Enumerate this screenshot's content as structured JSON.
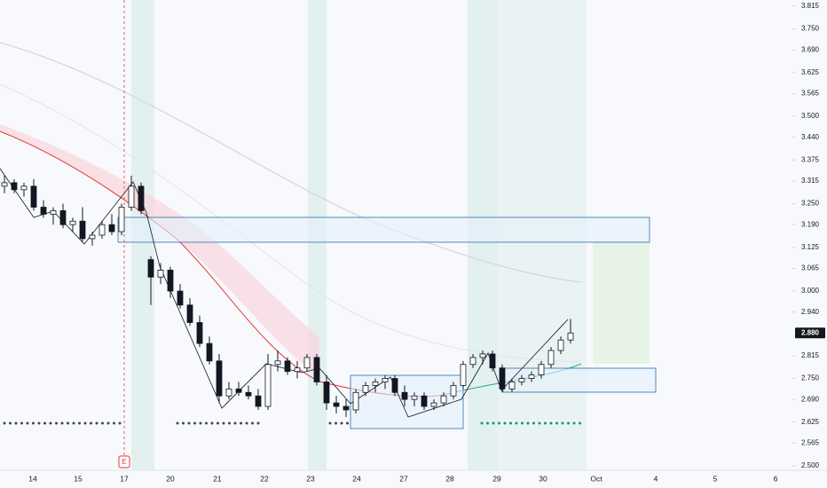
{
  "chart_data": {
    "type": "candlestick",
    "open": [
      3.3,
      3.31,
      3.29,
      3.3,
      3.24,
      3.22,
      3.23,
      3.19,
      3.2,
      3.15,
      3.16,
      3.19,
      3.17,
      3.24,
      3.3,
      3.09,
      3.04,
      3.06,
      3.0,
      2.96,
      2.91,
      2.85,
      2.8,
      2.7,
      2.72,
      2.71,
      2.7,
      2.67,
      2.79,
      2.8,
      2.77,
      2.78,
      2.81,
      2.74,
      2.68,
      2.67,
      2.66,
      2.71,
      2.73,
      2.74,
      2.75,
      2.71,
      2.69,
      2.7,
      2.67,
      2.68,
      2.7,
      2.73,
      2.79,
      2.81,
      2.82,
      2.78,
      2.72,
      2.74,
      2.75,
      2.76,
      2.79,
      2.83,
      2.86
    ],
    "high": [
      3.33,
      3.32,
      3.31,
      3.32,
      3.26,
      3.24,
      3.25,
      3.21,
      3.24,
      3.17,
      3.2,
      3.22,
      3.25,
      3.33,
      3.31,
      3.1,
      3.08,
      3.07,
      3.02,
      2.98,
      2.93,
      2.87,
      2.82,
      2.74,
      2.74,
      2.73,
      2.72,
      2.82,
      2.83,
      2.81,
      2.8,
      2.82,
      2.82,
      2.76,
      2.7,
      2.69,
      2.72,
      2.74,
      2.75,
      2.76,
      2.76,
      2.73,
      2.71,
      2.71,
      2.69,
      2.71,
      2.74,
      2.8,
      2.82,
      2.83,
      2.83,
      2.79,
      2.75,
      2.76,
      2.77,
      2.8,
      2.84,
      2.87,
      2.92
    ],
    "low": [
      3.28,
      3.28,
      3.27,
      3.23,
      3.21,
      3.19,
      3.18,
      3.17,
      3.14,
      3.13,
      3.15,
      3.16,
      3.16,
      3.23,
      3.22,
      2.96,
      3.02,
      2.98,
      2.95,
      2.9,
      2.84,
      2.79,
      2.68,
      2.69,
      2.7,
      2.69,
      2.66,
      2.66,
      2.77,
      2.76,
      2.75,
      2.77,
      2.73,
      2.66,
      2.65,
      2.64,
      2.65,
      2.7,
      2.71,
      2.72,
      2.7,
      2.67,
      2.67,
      2.66,
      2.66,
      2.67,
      2.69,
      2.72,
      2.78,
      2.79,
      2.77,
      2.71,
      2.71,
      2.73,
      2.74,
      2.75,
      2.78,
      2.82,
      2.85
    ],
    "close": [
      3.31,
      3.29,
      3.3,
      3.24,
      3.22,
      3.23,
      3.19,
      3.2,
      3.15,
      3.16,
      3.19,
      3.17,
      3.24,
      3.3,
      3.23,
      3.04,
      3.06,
      3.0,
      2.96,
      2.91,
      2.85,
      2.8,
      2.7,
      2.72,
      2.71,
      2.7,
      2.67,
      2.79,
      2.8,
      2.77,
      2.78,
      2.81,
      2.74,
      2.68,
      2.67,
      2.66,
      2.71,
      2.73,
      2.74,
      2.75,
      2.71,
      2.69,
      2.7,
      2.67,
      2.68,
      2.7,
      2.73,
      2.79,
      2.81,
      2.82,
      2.78,
      2.72,
      2.74,
      2.75,
      2.76,
      2.79,
      2.83,
      2.86,
      2.88
    ],
    "up_color": "#ffffff",
    "down_color": "#131722",
    "ylim": [
      2.5,
      3.815
    ],
    "yticks": [
      3.815,
      {
        "value": 3.75,
        "label": "3.750"
      },
      {
        "value": 3.69,
        "label": "3.690"
      },
      3.625,
      3.565,
      {
        "value": 3.5,
        "label": "3.500"
      },
      {
        "value": 3.44,
        "label": "3.440"
      },
      3.375,
      3.315,
      {
        "value": 3.25,
        "label": "3.250"
      },
      {
        "value": 3.19,
        "label": "3.190"
      },
      3.125,
      3.065,
      {
        "value": 3,
        "label": "3.000"
      },
      {
        "value": 2.94,
        "label": "2.940"
      },
      2.815,
      {
        "value": 2.75,
        "label": "2.750"
      },
      {
        "value": 2.69,
        "label": "2.690"
      },
      2.625,
      2.565,
      {
        "value": 2.5,
        "label": "2.500"
      }
    ],
    "last_price": {
      "value": 2.88,
      "label": "2.880"
    },
    "xlabels": [
      "14",
      "15",
      "17",
      "20",
      "21",
      "22",
      "23",
      "24",
      "27",
      "28",
      "29",
      "30",
      "Oct",
      "4",
      "5",
      "6"
    ],
    "earnings_marker": "E"
  }
}
